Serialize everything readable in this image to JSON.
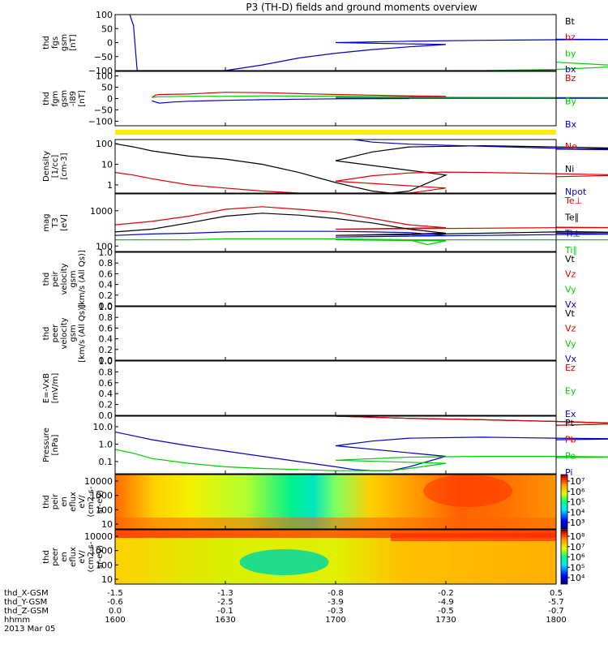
{
  "title": "P3 (TH-D) fields and ground moments overview",
  "colors": {
    "black": "#000000",
    "red": "#dd0000",
    "green": "#00cc00",
    "blue": "#0000cc",
    "yellow": "#ffee00"
  },
  "chart_data": [
    {
      "type": "line",
      "panel": "fgs",
      "ylabel": [
        "thd",
        "fgs",
        "gsm",
        "[nT]"
      ],
      "yticks": [
        "100",
        "50",
        "0",
        "−50",
        "−100"
      ],
      "ylim": [
        -100,
        100
      ],
      "legend": [
        "Bt",
        "bz",
        "by",
        "bx"
      ],
      "series": [
        {
          "name": "bx",
          "color": "blue",
          "x": [
            1604,
            1605,
            1606,
            1610,
            1614,
            1622,
            1630,
            1640,
            1650,
            1660,
            1670,
            1680,
            1690,
            1700,
            1720,
            1740,
            1760,
            1780,
            1800
          ],
          "values": [
            100,
            60,
            -100,
            -100,
            -100,
            -100,
            -100,
            -80,
            -55,
            -38,
            -25,
            -15,
            -7,
            0,
            5,
            8,
            10,
            11,
            12
          ]
        },
        {
          "name": "by",
          "color": "green",
          "x": [
            1700,
            1720,
            1740,
            1760,
            1780,
            1800
          ],
          "values": [
            -100,
            -100,
            -100,
            -96,
            -84,
            -70
          ]
        }
      ]
    },
    {
      "type": "line",
      "panel": "fgm",
      "ylabel": [
        "thd",
        "fgm",
        "gsm",
        "-l89",
        "[nT]"
      ],
      "yticks": [
        "100",
        "50",
        "0",
        "−50",
        "−100"
      ],
      "ylim": [
        -120,
        120
      ],
      "legend": [
        "Bz",
        "By",
        "Bx"
      ],
      "series": [
        {
          "name": "Bz",
          "color": "red",
          "x": [
            1610,
            1611,
            1612,
            1620,
            1630,
            1640,
            1650,
            1660,
            1670,
            1680,
            1690,
            1700,
            1720,
            1740,
            1760,
            1780,
            1800
          ],
          "values": [
            5,
            15,
            18,
            20,
            28,
            26,
            22,
            18,
            15,
            12,
            10,
            8,
            6,
            5,
            4,
            4,
            3
          ]
        },
        {
          "name": "By",
          "color": "green",
          "x": [
            1610,
            1612,
            1620,
            1630,
            1640,
            1650,
            1660,
            1680,
            1700,
            1720,
            1740,
            1760,
            1780,
            1800
          ],
          "values": [
            5,
            8,
            10,
            10,
            12,
            11,
            10,
            8,
            6,
            5,
            4,
            4,
            3,
            3
          ]
        },
        {
          "name": "Bx",
          "color": "blue",
          "x": [
            1610,
            1612,
            1616,
            1620,
            1630,
            1640,
            1650,
            1660,
            1680,
            1700,
            1720,
            1740,
            1760,
            1780,
            1800
          ],
          "values": [
            -10,
            -20,
            -15,
            -12,
            -8,
            -5,
            -3,
            -1,
            0,
            1,
            1,
            1,
            1,
            1,
            2
          ]
        }
      ]
    },
    {
      "type": "line",
      "panel": "density",
      "log": true,
      "ylabel": [
        "Density",
        "[1/cc]",
        "[cm-3]"
      ],
      "yticks": [
        "100",
        "10",
        "1"
      ],
      "ylim": [
        0.4,
        160
      ],
      "legend": [
        "Ne",
        "Ni",
        "Npot"
      ],
      "series": [
        {
          "name": "Ni",
          "color": "black",
          "x": [
            1600,
            1605,
            1610,
            1620,
            1630,
            1640,
            1650,
            1660,
            1665,
            1670,
            1675,
            1680,
            1690,
            1700,
            1710,
            1720,
            1740,
            1760,
            1780,
            1800
          ],
          "values": [
            100,
            70,
            45,
            25,
            18,
            10,
            4,
            1.3,
            0.8,
            0.5,
            0.35,
            0.5,
            3,
            15,
            40,
            70,
            80,
            70,
            60,
            55
          ]
        },
        {
          "name": "Ne",
          "color": "red",
          "x": [
            1600,
            1605,
            1610,
            1620,
            1630,
            1640,
            1650,
            1660,
            1670,
            1675,
            1680,
            1690,
            1700,
            1710,
            1720,
            1730,
            1740,
            1760,
            1780,
            1800
          ],
          "values": [
            4,
            3,
            2,
            1,
            0.7,
            0.5,
            0.4,
            0.4,
            0.35,
            0.35,
            0.4,
            0.7,
            1.5,
            2.8,
            3.8,
            4.2,
            4,
            3.5,
            3,
            2.5
          ]
        },
        {
          "name": "Npot",
          "color": "blue",
          "x": [
            1705,
            1710,
            1720,
            1740,
            1760,
            1780,
            1800
          ],
          "values": [
            160,
            120,
            95,
            75,
            60,
            50,
            55
          ]
        }
      ]
    },
    {
      "type": "line",
      "panel": "temperature",
      "log": true,
      "ylabel": [
        "mag",
        "T3",
        "[eV]"
      ],
      "yticks": [
        "1000",
        "100"
      ],
      "ylim": [
        70,
        3000
      ],
      "legend": [
        "Te⊥",
        "Te∥",
        "Ti⊥",
        "Ti∥"
      ],
      "series": [
        {
          "name": "Te⊥",
          "color": "red",
          "x": [
            1600,
            1610,
            1620,
            1630,
            1640,
            1650,
            1660,
            1670,
            1680,
            1690,
            1700,
            1720,
            1740,
            1760,
            1780,
            1800
          ],
          "values": [
            400,
            500,
            700,
            1100,
            1300,
            1100,
            900,
            600,
            400,
            330,
            300,
            310,
            320,
            330,
            330,
            340
          ]
        },
        {
          "name": "Te∥",
          "color": "black",
          "x": [
            1600,
            1610,
            1620,
            1630,
            1640,
            1650,
            1660,
            1670,
            1680,
            1690,
            1700,
            1720,
            1740,
            1760,
            1780,
            1800
          ],
          "values": [
            250,
            300,
            450,
            700,
            850,
            750,
            600,
            450,
            300,
            230,
            200,
            210,
            230,
            250,
            240,
            260
          ]
        },
        {
          "name": "Ti⊥",
          "color": "blue",
          "x": [
            1600,
            1610,
            1620,
            1630,
            1640,
            1650,
            1660,
            1670,
            1680,
            1690,
            1700,
            1720,
            1740,
            1760,
            1780,
            1800
          ],
          "values": [
            200,
            220,
            230,
            250,
            260,
            260,
            260,
            250,
            240,
            200,
            180,
            190,
            200,
            210,
            220,
            230
          ]
        },
        {
          "name": "Ti∥",
          "color": "green",
          "x": [
            1600,
            1610,
            1620,
            1630,
            1640,
            1650,
            1660,
            1670,
            1680,
            1685,
            1690,
            1700,
            1720,
            1740,
            1760,
            1780,
            1800
          ],
          "values": [
            150,
            150,
            150,
            160,
            160,
            160,
            160,
            155,
            150,
            110,
            140,
            150,
            150,
            150,
            150,
            150,
            150
          ]
        }
      ]
    },
    {
      "type": "line",
      "panel": "peir_velocity",
      "ylabel": [
        "thd",
        "peir",
        "velocity",
        "gsm",
        "[km/s (All Qs)]"
      ],
      "yticks": [
        "1.0",
        "0.8",
        "0.6",
        "0.4",
        "0.2",
        "0.0"
      ],
      "ylim": [
        0,
        1
      ],
      "legend": [
        "Vt",
        "Vz",
        "Vy",
        "Vx"
      ],
      "series": []
    },
    {
      "type": "line",
      "panel": "peer_velocity",
      "ylabel": [
        "thd",
        "peer",
        "velocity",
        "gsm",
        "[km/s (All Qs)]"
      ],
      "yticks": [
        "1.0",
        "0.8",
        "0.6",
        "0.4",
        "0.2",
        "0.0"
      ],
      "ylim": [
        0,
        1
      ],
      "legend": [
        "Vt",
        "Vz",
        "Vy",
        "Vx"
      ],
      "series": []
    },
    {
      "type": "line",
      "panel": "efield",
      "ylabel": [
        "E=-VxB",
        "[mV/m]"
      ],
      "yticks": [
        "1.0",
        "0.8",
        "0.6",
        "0.4",
        "0.2",
        "0.0"
      ],
      "ylim": [
        0,
        1
      ],
      "legend": [
        "Ez",
        "Ey",
        "Ex"
      ],
      "series": []
    },
    {
      "type": "line",
      "panel": "pressure",
      "log": true,
      "ylabel": [
        "Pressure",
        "[nPa]"
      ],
      "yticks": [
        "10.0",
        "1.0",
        "0.1"
      ],
      "ylim": [
        0.02,
        40
      ],
      "legend": [
        "Pt",
        "Pb",
        "Pe",
        "Pi"
      ],
      "series": [
        {
          "name": "Pt",
          "color": "black",
          "x": [
            1700,
            1720,
            1740,
            1760,
            1780,
            1800
          ],
          "values": [
            40,
            30,
            25,
            20,
            15,
            12
          ]
        },
        {
          "name": "Pb",
          "color": "red",
          "x": [
            1700,
            1720,
            1740,
            1760,
            1780,
            1800
          ],
          "values": [
            40,
            30,
            25,
            20,
            15,
            12
          ]
        },
        {
          "name": "Pi",
          "color": "blue",
          "x": [
            1600,
            1605,
            1610,
            1620,
            1630,
            1640,
            1650,
            1660,
            1665,
            1670,
            1675,
            1680,
            1690,
            1700,
            1710,
            1720,
            1740,
            1760,
            1780,
            1800
          ],
          "values": [
            5,
            3,
            1.8,
            0.8,
            0.4,
            0.2,
            0.1,
            0.05,
            0.035,
            0.03,
            0.03,
            0.05,
            0.2,
            0.8,
            1.5,
            2.2,
            2.5,
            2.2,
            2,
            1.8
          ]
        },
        {
          "name": "Pe",
          "color": "green",
          "x": [
            1600,
            1605,
            1610,
            1620,
            1630,
            1640,
            1650,
            1660,
            1670,
            1675,
            1680,
            1690,
            1700,
            1720,
            1740,
            1760,
            1780,
            1800
          ],
          "values": [
            0.5,
            0.3,
            0.15,
            0.08,
            0.05,
            0.04,
            0.035,
            0.03,
            0.03,
            0.03,
            0.04,
            0.08,
            0.12,
            0.18,
            0.2,
            0.2,
            0.18,
            0.17
          ]
        }
      ]
    },
    {
      "type": "heatmap",
      "panel": "peir_energy_flux",
      "ylabel": [
        "thd",
        "peir",
        "en",
        "eflux",
        "eV/",
        "(cm2-s-",
        "sr-eV)"
      ],
      "yticks": [
        "10000",
        "1000",
        "100",
        "10"
      ],
      "colorbar_ticks": [
        "10⁷",
        "10⁶",
        "10⁵",
        "10⁴",
        "10³"
      ]
    },
    {
      "type": "heatmap",
      "panel": "peer_energy_flux",
      "ylabel": [
        "thd",
        "peer",
        "en",
        "eflux",
        "eV/",
        "(cm2-s-",
        "sr-eV)"
      ],
      "yticks": [
        "10000",
        "1000",
        "100",
        "10"
      ],
      "colorbar_ticks": [
        "10⁸",
        "10⁷",
        "10⁶",
        "10⁵",
        "10⁴"
      ]
    }
  ],
  "xaxis": {
    "xlim": [
      1600,
      1800
    ],
    "tick_positions": [
      1600,
      1630,
      1700,
      1730,
      1800
    ],
    "rows": [
      {
        "label": "thd_X-GSM",
        "values": [
          "-1.5",
          "-1.3",
          "-0.8",
          "-0.2",
          "0.5"
        ]
      },
      {
        "label": "thd_Y-GSM",
        "values": [
          "-0.6",
          "-2.5",
          "-3.9",
          "-4.9",
          "-5.7"
        ]
      },
      {
        "label": "thd_Z-GSM",
        "values": [
          "0.0",
          "-0.1",
          "-0.3",
          "-0.5",
          "-0.7"
        ]
      },
      {
        "label": "hhmm",
        "values": [
          "1600",
          "1630",
          "1700",
          "1730",
          "1800"
        ]
      }
    ],
    "date": "2013 Mar 05"
  }
}
